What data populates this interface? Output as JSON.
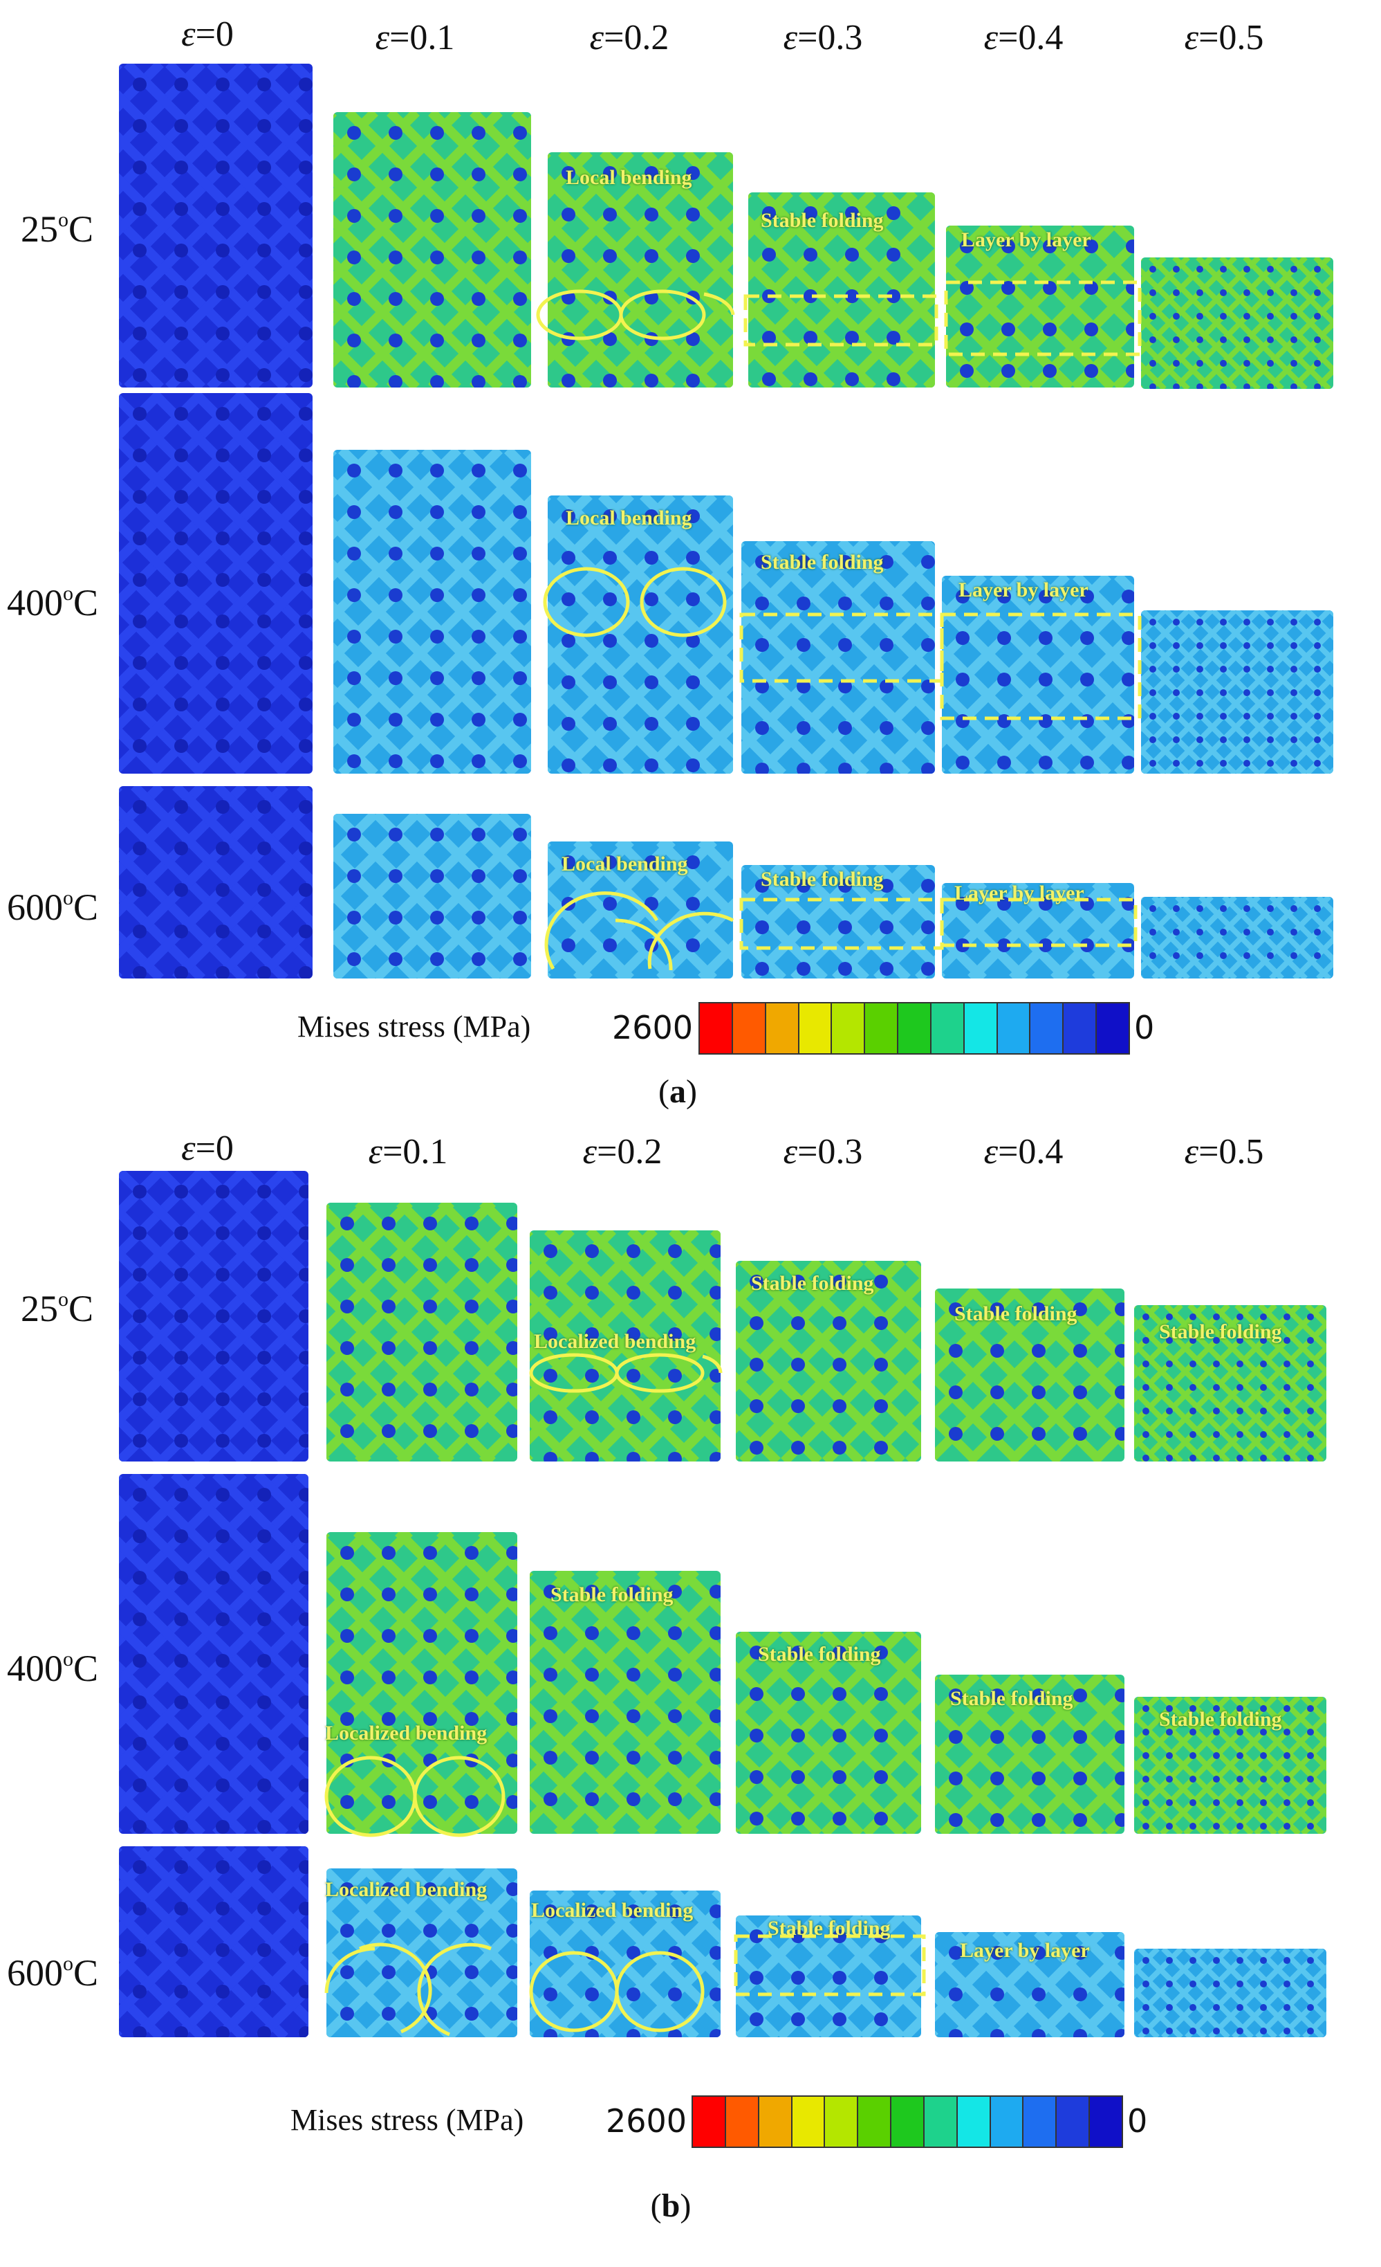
{
  "panels": [
    {
      "id": "a",
      "caption_open": "(",
      "caption_letter": "a",
      "caption_close": ")",
      "strains": [
        "0",
        "0.1",
        "0.2",
        "0.3",
        "0.4",
        "0.5"
      ],
      "temperatures": [
        "25",
        "400",
        "600"
      ],
      "degree_unit": "o",
      "celsius": "C",
      "annotations": {
        "t25": [
          "Local bending",
          "Stable folding",
          "Layer by layer"
        ],
        "t400": [
          "Local bending",
          "Stable folding",
          "Layer by layer"
        ],
        "t600": [
          "Local bending",
          "Stable folding",
          "Layer by layer"
        ]
      },
      "legend": {
        "label": "Mises stress (MPa)",
        "max": "2600",
        "min": "0"
      }
    },
    {
      "id": "b",
      "caption_open": "(",
      "caption_letter": "b",
      "caption_close": ")",
      "strains": [
        "0",
        "0.1",
        "0.2",
        "0.3",
        "0.4",
        "0.5"
      ],
      "temperatures": [
        "25",
        "400",
        "600"
      ],
      "degree_unit": "o",
      "celsius": "C",
      "annotations": {
        "t25": [
          "Localized bending",
          "Stable folding",
          "Stable folding",
          "Stable folding"
        ],
        "t400": [
          "Localized bending",
          "Stable folding",
          "Stable folding",
          "Stable folding",
          "Stable folding"
        ],
        "t600": [
          "Localized bending",
          "Localized bending",
          "Stable folding",
          "Layer by layer"
        ]
      },
      "legend": {
        "label": "Mises stress (MPa)",
        "max": "2600",
        "min": "0"
      }
    }
  ],
  "epsilon_symbol": "ε",
  "equals": "=",
  "colorbar_colors": [
    "#ff0000",
    "#ff5a00",
    "#f0a800",
    "#e8e800",
    "#b4e600",
    "#5ad000",
    "#1ec81e",
    "#1ed28c",
    "#14e6e6",
    "#1eaaf0",
    "#1e6ef0",
    "#1e3cdc",
    "#1010c8"
  ]
}
